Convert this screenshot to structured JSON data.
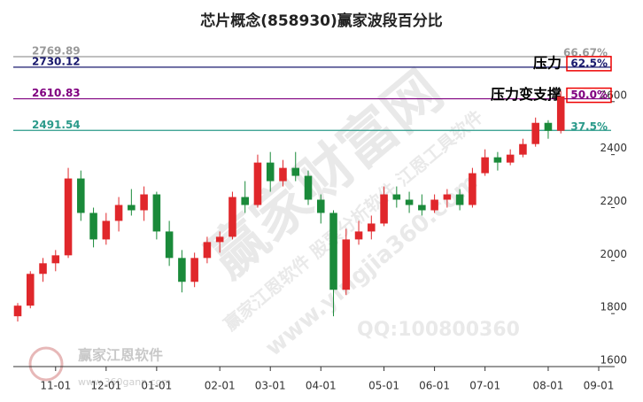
{
  "chart_data": {
    "type": "candlestick",
    "title": "芯片概念(858930)赢家波段百分比",
    "categories": [
      null,
      null,
      null,
      "11-01",
      null,
      null,
      null,
      "12-01",
      null,
      null,
      null,
      "01-01",
      null,
      null,
      null,
      null,
      "02-01",
      null,
      null,
      null,
      "03-01",
      null,
      null,
      null,
      "04-01",
      null,
      null,
      null,
      null,
      "05-01",
      null,
      null,
      null,
      "06-01",
      null,
      null,
      null,
      "07-01",
      null,
      null,
      null,
      null,
      "08-01",
      null,
      null,
      null,
      "09-01"
    ],
    "open": [
      1790,
      1830,
      1950,
      1990,
      2020,
      2310,
      2180,
      2080,
      2150,
      2210,
      2190,
      2250,
      2110,
      2010,
      1920,
      2010,
      2070,
      2090,
      2240,
      2210,
      2370,
      2300,
      2350,
      2320,
      2230,
      2180,
      1890,
      2080,
      2110,
      2140,
      2250,
      2230,
      2210,
      2190,
      2230,
      2250,
      2210,
      2330,
      2390,
      2370,
      2400,
      2440,
      2520,
      2490,
      null,
      null,
      null
    ],
    "high": [
      1840,
      1960,
      2010,
      2040,
      2350,
      2340,
      2200,
      2180,
      2240,
      2270,
      2280,
      2260,
      2150,
      2040,
      2030,
      2090,
      2110,
      2260,
      2300,
      2400,
      2410,
      2380,
      2410,
      2340,
      2250,
      2190,
      2120,
      2150,
      2170,
      2280,
      2280,
      2260,
      2250,
      2250,
      2270,
      2270,
      2350,
      2420,
      2410,
      2420,
      2460,
      2540,
      2530,
      2640,
      null,
      null,
      null
    ],
    "low": [
      1770,
      1820,
      1920,
      1960,
      2010,
      2150,
      2050,
      2060,
      2110,
      2170,
      2150,
      2080,
      1980,
      1880,
      1900,
      1990,
      2030,
      2080,
      2180,
      2200,
      2260,
      2280,
      2300,
      2210,
      2140,
      1790,
      1870,
      2060,
      2080,
      2130,
      2200,
      2180,
      2170,
      2180,
      2200,
      2190,
      2200,
      2320,
      2340,
      2360,
      2390,
      2430,
      2460,
      2480,
      null,
      null,
      null
    ],
    "close": [
      1830,
      1950,
      1990,
      2020,
      2310,
      2180,
      2080,
      2150,
      2210,
      2190,
      2250,
      2110,
      2010,
      1920,
      2010,
      2070,
      2090,
      2240,
      2210,
      2370,
      2300,
      2350,
      2320,
      2230,
      2180,
      1890,
      2080,
      2110,
      2140,
      2250,
      2230,
      2210,
      2190,
      2230,
      2250,
      2210,
      2330,
      2390,
      2370,
      2400,
      2440,
      2520,
      2490,
      2620,
      null,
      null,
      null
    ],
    "up_color": "#e0272b",
    "down_color": "#1a8a3a",
    "ylim": [
      1580,
      2850
    ],
    "yticks": [
      1600,
      1800,
      2000,
      2200,
      2400,
      2600
    ],
    "levels": [
      {
        "value": 2769.89,
        "percent": "66.67%",
        "color": "#9a9a9a"
      },
      {
        "value": 2730.12,
        "percent": "62.5%",
        "color": "#1a1a6e",
        "note": "压力"
      },
      {
        "value": 2610.83,
        "percent": "50.0%",
        "color": "#800080",
        "note": "压力变支撑"
      },
      {
        "value": 2491.54,
        "percent": "37.5%",
        "color": "#2a9a8a"
      }
    ],
    "watermarks": [
      "赢家财富网",
      "赢家江恩软件 股票分析软件 江恩工具软件",
      "www.yingjia360.com",
      "QQ:100800360"
    ],
    "logo_name": "赢家江恩软件",
    "logo_url": "www.360gann.com"
  }
}
